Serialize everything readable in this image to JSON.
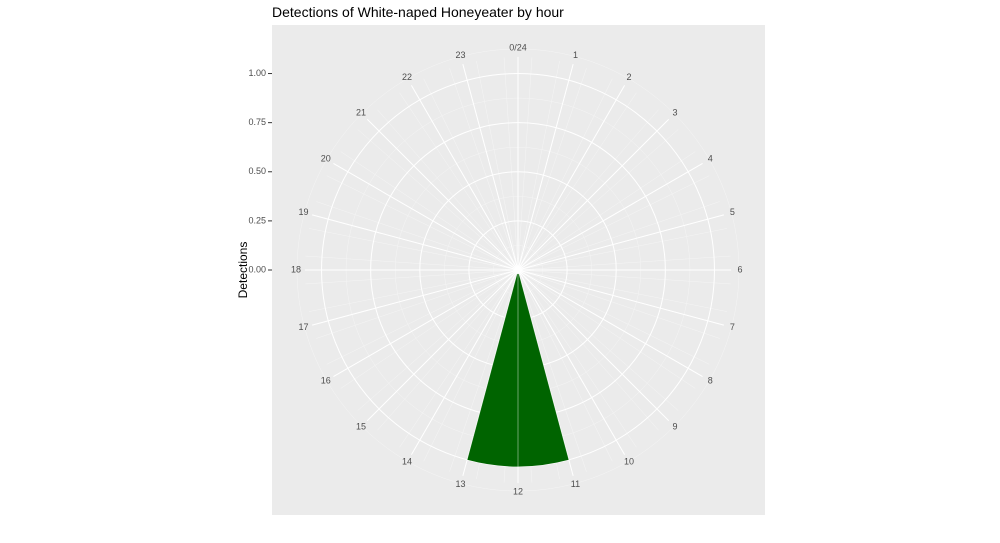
{
  "chart_data": {
    "type": "polar-bar",
    "title": "Detections of White-naped Honeyeater by hour",
    "y_label": "Detections",
    "x": [
      0,
      1,
      2,
      3,
      4,
      5,
      6,
      7,
      8,
      9,
      10,
      11,
      12,
      13,
      14,
      15,
      16,
      17,
      18,
      19,
      20,
      21,
      22,
      23
    ],
    "values": [
      0,
      0,
      0,
      0,
      0,
      0,
      0,
      0,
      0,
      0,
      0,
      0,
      1,
      0,
      0,
      0,
      0,
      0,
      0,
      0,
      0,
      0,
      0,
      0
    ],
    "color": "#006400",
    "xlim": [
      0,
      24
    ],
    "xticks": [
      {
        "value": 0,
        "label": "0/24"
      },
      1,
      2,
      3,
      4,
      5,
      6,
      7,
      8,
      9,
      10,
      11,
      12,
      13,
      14,
      15,
      16,
      17,
      18,
      19,
      20,
      21,
      22,
      23
    ],
    "ylim": [
      0,
      1.13
    ],
    "yticks": [
      {
        "value": 0,
        "label": "0.00"
      },
      {
        "value": 0.25,
        "label": "0.25"
      },
      {
        "value": 0.5,
        "label": "0.50"
      },
      {
        "value": 0.75,
        "label": "0.75"
      },
      {
        "value": 1,
        "label": "1.00"
      }
    ],
    "grid": true
  }
}
